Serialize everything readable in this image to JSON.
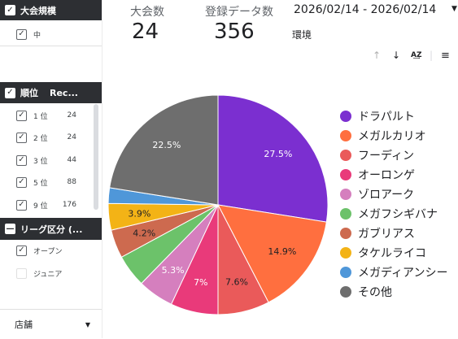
{
  "filters": {
    "size": {
      "title": "大会規模",
      "items": [
        {
          "label": "中",
          "checked": true
        }
      ]
    },
    "rank": {
      "title": "順位",
      "col2": "Rec...",
      "items": [
        {
          "label": "1 位",
          "count": "24",
          "checked": true
        },
        {
          "label": "2 位",
          "count": "24",
          "checked": true
        },
        {
          "label": "3 位",
          "count": "44",
          "checked": true
        },
        {
          "label": "5 位",
          "count": "88",
          "checked": true
        },
        {
          "label": "9 位",
          "count": "176",
          "checked": true
        }
      ]
    },
    "league": {
      "title": "リーグ区分 (...",
      "items": [
        {
          "label": "オープン",
          "checked": true
        },
        {
          "label": "ジュニア",
          "checked": false
        }
      ]
    },
    "store": {
      "label": "店舗"
    }
  },
  "scorecards": [
    {
      "label": "大会数",
      "value": "24"
    },
    {
      "label": "登録データ数",
      "value": "356"
    }
  ],
  "date_range": "2026/02/14 - 2026/02/14",
  "env_label": "環境",
  "chart_data": {
    "type": "pie",
    "slices": [
      {
        "name": "ドラパルト",
        "value": 27.5,
        "label": "27.5%",
        "color": "#7b2fd0"
      },
      {
        "name": "メガルカリオ",
        "value": 14.9,
        "label": "14.9%",
        "color": "#ff6f3f"
      },
      {
        "name": "フーディン",
        "value": 7.6,
        "label": "7.6%",
        "color": "#ea5a5a"
      },
      {
        "name": "オーロンゲ",
        "value": 7.0,
        "label": "7%",
        "color": "#e93a7a"
      },
      {
        "name": "ゾロアーク",
        "value": 5.3,
        "label": "5.3%",
        "color": "#d57fbe"
      },
      {
        "name": "メガフシギバナ",
        "value": 4.8,
        "label": "",
        "color": "#6cc26a"
      },
      {
        "name": "ガブリアス",
        "value": 4.2,
        "label": "4.2%",
        "color": "#cd6a4f"
      },
      {
        "name": "タケルライコ",
        "value": 3.9,
        "label": "3.9%",
        "color": "#f3b316"
      },
      {
        "name": "メガディアンシー",
        "value": 2.3,
        "label": "",
        "color": "#4f97d9"
      },
      {
        "name": "その他",
        "value": 22.5,
        "label": "22.5%",
        "color": "#6e6e6e"
      }
    ],
    "legend_position": "right"
  }
}
